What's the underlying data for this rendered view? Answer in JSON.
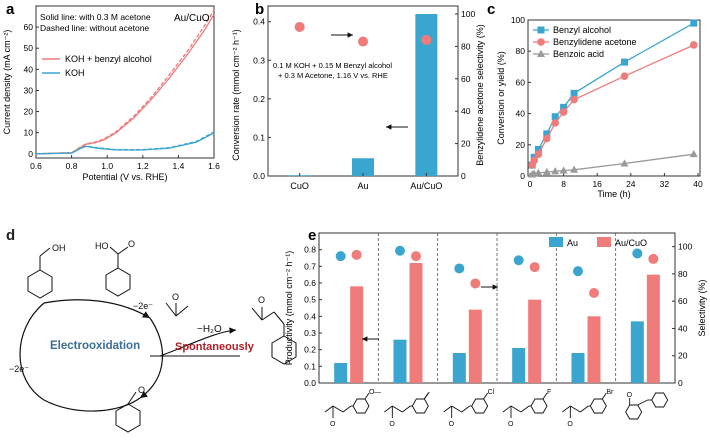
{
  "panels": {
    "a": "a",
    "b": "b",
    "c": "c",
    "d": "d",
    "e": "e"
  },
  "colors": {
    "red": "#ef7b7b",
    "blue": "#3aa6cf",
    "gray": "#9a9a9a",
    "dark_red": "#b01b24",
    "steel_blue": "#3a6e94"
  },
  "chart_data": [
    {
      "id": "a",
      "type": "line",
      "xlabel": "Potential (V vs. RHE)",
      "ylabel": "Current density (mA cm⁻²)",
      "xlim": [
        0.6,
        1.6
      ],
      "ylim": [
        -2,
        70
      ],
      "xticks": [
        0.6,
        0.8,
        1.0,
        1.2,
        1.4,
        1.6
      ],
      "yticks": [
        0,
        10,
        20,
        30,
        40,
        50,
        60
      ],
      "annotations": [
        "Solid line: with 0.3 M acetone",
        "Dashed line: without acetone",
        "Au/CuO"
      ],
      "legend": [
        "KOH + benzyl alcohol",
        "KOH"
      ],
      "series": [
        {
          "name": "KOH + benzyl alcohol (solid)",
          "color": "red",
          "dash": false,
          "x": [
            0.6,
            0.8,
            0.84,
            0.88,
            0.93,
            0.98,
            1.05,
            1.15,
            1.25,
            1.35,
            1.45,
            1.55,
            1.6
          ],
          "y": [
            0,
            0.5,
            2.5,
            4.5,
            5.2,
            6.5,
            10,
            17,
            26,
            36,
            47,
            59,
            66
          ]
        },
        {
          "name": "KOH + benzyl alcohol (dashed)",
          "color": "red",
          "dash": true,
          "x": [
            0.6,
            0.8,
            0.84,
            0.88,
            0.93,
            0.98,
            1.05,
            1.15,
            1.25,
            1.35,
            1.45,
            1.55,
            1.6
          ],
          "y": [
            0,
            0.5,
            2.7,
            4.7,
            5.5,
            6.9,
            10.5,
            17.8,
            27,
            37.5,
            48.5,
            61,
            68
          ]
        },
        {
          "name": "KOH (solid)",
          "color": "blue",
          "dash": false,
          "x": [
            0.6,
            0.8,
            0.85,
            0.88,
            0.95,
            1.05,
            1.2,
            1.35,
            1.5,
            1.58,
            1.6
          ],
          "y": [
            0,
            0.3,
            2.5,
            3.5,
            2.6,
            1.8,
            1.8,
            2.7,
            5.5,
            9,
            10
          ]
        },
        {
          "name": "KOH (dashed)",
          "color": "blue",
          "dash": true,
          "x": [
            0.6,
            0.8,
            0.85,
            0.88,
            0.95,
            1.05,
            1.2,
            1.35,
            1.5,
            1.58,
            1.6
          ],
          "y": [
            0,
            0.3,
            2.6,
            3.7,
            2.8,
            2.0,
            2.0,
            2.9,
            5.8,
            9.4,
            10.4
          ]
        }
      ]
    },
    {
      "id": "b",
      "type": "bar",
      "categories": [
        "CuO",
        "Au",
        "Au/CuO"
      ],
      "values": [
        0.002,
        0.046,
        0.42
      ],
      "selectivity": [
        92,
        83,
        84
      ],
      "ylabel": "Conversion rate (mmol cm⁻² h⁻¹)",
      "y2label": "Benzylidene acetone selectivity (%)",
      "ylim": [
        0,
        0.42
      ],
      "yticks": [
        0.0,
        0.1,
        0.2,
        0.3,
        0.4
      ],
      "y2lim": [
        0,
        100
      ],
      "y2ticks": [
        0,
        20,
        40,
        60,
        80,
        100
      ],
      "annotation": [
        "0.1 M KOH + 0.15 M Benzyl alcohol",
        "+ 0.3 M Acetone, 1.16 V vs. RHE"
      ]
    },
    {
      "id": "c",
      "type": "line",
      "xlabel": "Time (h)",
      "ylabel": "Conversion or yield (%)",
      "xlim": [
        0,
        40
      ],
      "ylim": [
        0,
        100
      ],
      "xticks": [
        0,
        8,
        16,
        24,
        32,
        40
      ],
      "yticks": [
        0,
        20,
        40,
        60,
        80,
        100
      ],
      "series": [
        {
          "name": "Benzyl alcohol",
          "marker": "square",
          "color": "blue",
          "x": [
            0.5,
            1,
            2,
            4,
            6,
            8,
            10.5,
            22.5,
            39
          ],
          "y": [
            7,
            12,
            17,
            27,
            38,
            44,
            53,
            73,
            98
          ]
        },
        {
          "name": "Benzylidene acetone",
          "marker": "circle",
          "color": "red",
          "x": [
            0.5,
            1,
            2,
            4,
            6,
            8,
            10.5,
            22.5,
            39
          ],
          "y": [
            7,
            10,
            14,
            24,
            34,
            41,
            49,
            64,
            84
          ]
        },
        {
          "name": "Benzoic acid",
          "marker": "triangle",
          "color": "gray",
          "x": [
            0.5,
            1,
            2,
            4,
            6,
            8,
            10.5,
            22.5,
            39
          ],
          "y": [
            1,
            1.5,
            2,
            2.5,
            3,
            3.5,
            4,
            8,
            14
          ]
        }
      ]
    },
    {
      "id": "e",
      "type": "bar",
      "categories": [
        "4-OMe",
        "4-Me",
        "4-Cl",
        "4-F",
        "4-Br",
        "cyclohexanone"
      ],
      "series": [
        {
          "name": "Au",
          "color": "blue",
          "values": [
            0.12,
            0.26,
            0.18,
            0.21,
            0.18,
            0.37
          ],
          "selectivity": [
            93,
            97,
            84,
            90,
            82,
            95
          ]
        },
        {
          "name": "Au/CuO",
          "color": "red",
          "values": [
            0.58,
            0.72,
            0.44,
            0.5,
            0.4,
            0.65
          ],
          "selectivity": [
            94,
            93,
            73,
            85,
            66,
            91
          ]
        }
      ],
      "ylabel": "Productivity (mmol cm⁻² h⁻¹)",
      "y2label": "Selectivity (%)",
      "ylim": [
        0,
        0.9
      ],
      "yticks": [
        0.0,
        0.1,
        0.2,
        0.3,
        0.4,
        0.5,
        0.6,
        0.7,
        0.8
      ],
      "y2lim": [
        0,
        110
      ],
      "y2ticks": [
        0,
        20,
        40,
        60,
        80,
        100
      ]
    }
  ],
  "scheme_d": {
    "electro_label": "Electrooxidation",
    "spont_label": "Spontaneously",
    "minus2e_top": "−2e⁻",
    "minus2e_left": "−2e⁻",
    "minus_h2o": "−H₂O",
    "oh": "OH",
    "ho": "HO",
    "o_carbonyl": "O",
    "o_acetone": "O",
    "o_product": "O",
    "o_aldehyde": "O"
  },
  "substituents": [
    "O",
    "Cl",
    "F",
    "Br"
  ],
  "substituent_marks": [
    "—",
    "—"
  ],
  "ketone_o": "O"
}
